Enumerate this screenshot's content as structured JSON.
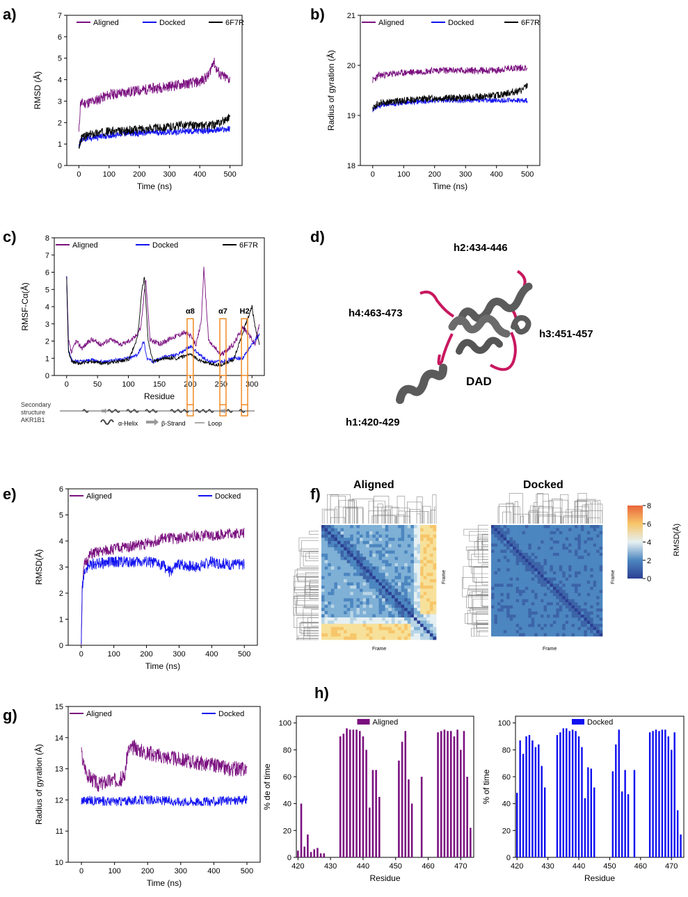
{
  "colors": {
    "aligned": "#7a0f7f",
    "docked": "#1010f0",
    "ref": "#000000",
    "highlight": "#f08a24",
    "helix": "#5b5b5b",
    "loop": "#c8175f"
  },
  "panel_labels": {
    "a": "a)",
    "b": "b)",
    "c": "c)",
    "d": "d)",
    "e": "e)",
    "f": "f)",
    "g": "g)",
    "h": "h)"
  },
  "panel_d": {
    "labels": [
      "h2:434-446",
      "h4:463-473",
      "h3:451-457",
      "DAD",
      "h1:420-429"
    ]
  },
  "panel_f": {
    "titles": [
      "Aligned",
      "Docked"
    ],
    "axis_label": "Frame",
    "colorbar_label": "RMSD(Å)",
    "colorbar_ticks": [
      "8",
      "6",
      "4",
      "2",
      "0"
    ]
  },
  "chart_data": [
    {
      "id": "a",
      "type": "line",
      "xlabel": "Time (ns)",
      "ylabel": "RMSD (Å)",
      "xlim": [
        -40,
        540
      ],
      "ylim": [
        0,
        7
      ],
      "xticks": [
        "0",
        "100",
        "200",
        "300",
        "400",
        "500"
      ],
      "yticks": [
        "0",
        "1",
        "2",
        "3",
        "4",
        "5",
        "6",
        "7"
      ],
      "legend": [
        "Aligned",
        "Docked",
        "6F7R"
      ],
      "series": [
        {
          "name": "Aligned",
          "color_key": "aligned",
          "noise": 0.25,
          "x": [
            0,
            5,
            20,
            50,
            100,
            150,
            200,
            250,
            300,
            350,
            400,
            430,
            445,
            455,
            470,
            500
          ],
          "y": [
            1.5,
            2.9,
            2.9,
            3.0,
            3.3,
            3.4,
            3.5,
            3.6,
            3.7,
            3.8,
            3.9,
            4.2,
            4.9,
            4.5,
            4.2,
            4.0
          ]
        },
        {
          "name": "Docked",
          "color_key": "docked",
          "noise": 0.15,
          "x": [
            0,
            10,
            50,
            100,
            150,
            200,
            250,
            300,
            350,
            400,
            450,
            500
          ],
          "y": [
            1.0,
            1.2,
            1.3,
            1.4,
            1.5,
            1.5,
            1.55,
            1.55,
            1.6,
            1.6,
            1.65,
            1.7
          ]
        },
        {
          "name": "6F7R",
          "color_key": "ref",
          "noise": 0.2,
          "x": [
            0,
            10,
            50,
            100,
            150,
            200,
            250,
            300,
            350,
            400,
            450,
            480,
            500
          ],
          "y": [
            0.9,
            1.3,
            1.5,
            1.6,
            1.6,
            1.7,
            1.75,
            1.8,
            1.9,
            1.85,
            1.9,
            2.1,
            2.3
          ]
        }
      ]
    },
    {
      "id": "b",
      "type": "line",
      "xlabel": "Time (ns)",
      "ylabel": "Radius of gyration (Å)",
      "xlim": [
        -40,
        540
      ],
      "ylim": [
        18,
        21
      ],
      "xticks": [
        "0",
        "100",
        "200",
        "300",
        "400",
        "500"
      ],
      "yticks": [
        "18",
        "19",
        "20",
        "21"
      ],
      "legend": [
        "Aligned",
        "Docked",
        "6F7R"
      ],
      "series": [
        {
          "name": "Aligned",
          "color_key": "aligned",
          "noise": 0.07,
          "x": [
            0,
            20,
            100,
            200,
            300,
            400,
            450,
            500
          ],
          "y": [
            19.7,
            19.8,
            19.85,
            19.9,
            19.9,
            19.9,
            19.95,
            19.95
          ]
        },
        {
          "name": "Docked",
          "color_key": "docked",
          "noise": 0.05,
          "x": [
            0,
            20,
            100,
            200,
            300,
            400,
            500
          ],
          "y": [
            19.1,
            19.2,
            19.25,
            19.3,
            19.3,
            19.3,
            19.3
          ]
        },
        {
          "name": "6F7R",
          "color_key": "ref",
          "noise": 0.07,
          "x": [
            0,
            20,
            100,
            200,
            300,
            400,
            480,
            500
          ],
          "y": [
            19.15,
            19.25,
            19.3,
            19.35,
            19.35,
            19.4,
            19.5,
            19.6
          ]
        }
      ]
    },
    {
      "id": "c",
      "type": "line",
      "xlabel": "Residue",
      "ylabel": "RMSF-Cα(Å)",
      "xlim": [
        -20,
        320
      ],
      "ylim": [
        0,
        8
      ],
      "xticks": [
        "0",
        "50",
        "100",
        "150",
        "200",
        "250",
        "300"
      ],
      "yticks": [
        "0",
        "1",
        "2",
        "3",
        "4",
        "5",
        "6",
        "7",
        "8"
      ],
      "legend": [
        "Aligned",
        "Docked",
        "6F7R"
      ],
      "highlights": [
        {
          "label": "α8",
          "x0": 195,
          "x1": 205
        },
        {
          "label": "α7",
          "x0": 248,
          "x1": 258
        },
        {
          "label": "H2",
          "x0": 283,
          "x1": 293
        }
      ],
      "secondary_structure": {
        "title": [
          "Secondary",
          "structure",
          "AKR1B1"
        ],
        "legend": [
          "α-Helix",
          "β-Strand",
          "Loop"
        ]
      },
      "series": [
        {
          "name": "Aligned",
          "color_key": "aligned",
          "noise": 0.15,
          "x": [
            0,
            3,
            8,
            15,
            25,
            40,
            55,
            70,
            90,
            110,
            120,
            128,
            135,
            150,
            170,
            190,
            200,
            210,
            218,
            222,
            230,
            250,
            270,
            285,
            295,
            305,
            312
          ],
          "y": [
            5.7,
            2.0,
            1.3,
            2.0,
            1.6,
            2.1,
            1.8,
            2.1,
            1.8,
            2.2,
            2.8,
            5.6,
            2.1,
            1.8,
            2.2,
            2.5,
            2.3,
            1.8,
            3.2,
            6.2,
            2.0,
            1.2,
            1.8,
            2.8,
            2.4,
            1.8,
            3.0
          ]
        },
        {
          "name": "Docked",
          "color_key": "docked",
          "noise": 0.1,
          "x": [
            0,
            3,
            8,
            20,
            40,
            60,
            80,
            100,
            115,
            125,
            130,
            140,
            160,
            180,
            200,
            215,
            230,
            250,
            270,
            285,
            300,
            312
          ],
          "y": [
            5.7,
            1.5,
            0.9,
            0.8,
            0.9,
            0.8,
            0.9,
            1.0,
            1.2,
            2.0,
            1.0,
            0.8,
            1.1,
            1.2,
            1.7,
            1.2,
            0.8,
            0.8,
            1.0,
            1.0,
            1.8,
            2.4
          ]
        },
        {
          "name": "6F7R",
          "color_key": "ref",
          "noise": 0.1,
          "x": [
            0,
            3,
            8,
            20,
            40,
            60,
            80,
            100,
            115,
            122,
            126,
            132,
            140,
            160,
            180,
            200,
            215,
            230,
            250,
            270,
            285,
            300,
            305,
            312
          ],
          "y": [
            5.7,
            1.4,
            0.8,
            0.7,
            0.8,
            0.7,
            0.8,
            0.9,
            2.2,
            5.0,
            5.7,
            2.0,
            0.8,
            1.0,
            1.0,
            1.2,
            0.9,
            0.7,
            0.6,
            0.9,
            2.5,
            4.0,
            2.8,
            1.8
          ]
        }
      ]
    },
    {
      "id": "e",
      "type": "line",
      "xlabel": "Time (ns)",
      "ylabel": "RMSD(Å)",
      "xlim": [
        -40,
        540
      ],
      "ylim": [
        0,
        6
      ],
      "xticks": [
        "0",
        "100",
        "200",
        "300",
        "400",
        "500"
      ],
      "yticks": [
        "0",
        "1",
        "2",
        "3",
        "4",
        "5",
        "6"
      ],
      "legend": [
        "Aligned",
        "Docked"
      ],
      "series": [
        {
          "name": "Aligned",
          "color_key": "aligned",
          "noise": 0.22,
          "x": [
            0,
            3,
            10,
            30,
            100,
            150,
            200,
            250,
            300,
            350,
            400,
            450,
            500
          ],
          "y": [
            0.0,
            2.3,
            3.1,
            3.5,
            3.7,
            3.8,
            3.9,
            4.1,
            4.1,
            4.2,
            4.2,
            4.3,
            4.3
          ]
        },
        {
          "name": "Docked",
          "color_key": "docked",
          "noise": 0.22,
          "x": [
            0,
            3,
            10,
            30,
            100,
            150,
            200,
            250,
            270,
            300,
            350,
            400,
            450,
            500
          ],
          "y": [
            0.0,
            2.2,
            2.9,
            3.1,
            3.2,
            3.2,
            3.2,
            3.1,
            2.8,
            3.1,
            3.0,
            3.2,
            3.1,
            3.1
          ]
        }
      ]
    },
    {
      "id": "g",
      "type": "line",
      "xlabel": "Time (ns)",
      "ylabel": "Radius of gyration (Å)",
      "xlim": [
        -40,
        540
      ],
      "ylim": [
        10,
        15
      ],
      "xticks": [
        "0",
        "100",
        "200",
        "300",
        "400",
        "500"
      ],
      "yticks": [
        "10",
        "11",
        "12",
        "13",
        "14",
        "15"
      ],
      "legend": [
        "Aligned",
        "Docked"
      ],
      "series": [
        {
          "name": "Aligned",
          "color_key": "aligned",
          "noise": 0.25,
          "x": [
            0,
            5,
            20,
            50,
            80,
            130,
            140,
            160,
            200,
            250,
            300,
            350,
            400,
            450,
            500
          ],
          "y": [
            13.5,
            13.2,
            12.8,
            12.5,
            12.6,
            12.7,
            13.6,
            13.7,
            13.5,
            13.4,
            13.3,
            13.2,
            13.1,
            13.0,
            13.0
          ]
        },
        {
          "name": "Docked",
          "color_key": "docked",
          "noise": 0.15,
          "x": [
            0,
            100,
            200,
            300,
            400,
            500
          ],
          "y": [
            12.0,
            11.95,
            12.0,
            11.95,
            11.95,
            12.0
          ]
        }
      ]
    },
    {
      "id": "h1",
      "type": "bar",
      "xlabel": "Residue",
      "ylabel": "% de of time",
      "legend": "Aligned",
      "color_key": "aligned",
      "xlim": [
        419.5,
        474
      ],
      "ylim": [
        0,
        105
      ],
      "xticks": [
        "420",
        "430",
        "440",
        "450",
        "460",
        "470"
      ],
      "yticks": [
        "0",
        "20",
        "40",
        "60",
        "80",
        "100"
      ],
      "categories": [
        420,
        421,
        422,
        423,
        424,
        425,
        426,
        427,
        428,
        429,
        430,
        431,
        432,
        433,
        434,
        435,
        436,
        437,
        438,
        439,
        440,
        441,
        442,
        443,
        444,
        445,
        446,
        447,
        448,
        449,
        450,
        451,
        452,
        453,
        454,
        455,
        456,
        457,
        458,
        459,
        460,
        461,
        462,
        463,
        464,
        465,
        466,
        467,
        468,
        469,
        470,
        471,
        472,
        473
      ],
      "values": [
        5,
        40,
        8,
        17,
        4,
        6,
        7,
        3,
        3,
        0,
        0,
        0,
        0,
        90,
        92,
        96,
        95,
        95,
        95,
        94,
        90,
        80,
        37,
        65,
        65,
        45,
        0,
        0,
        0,
        0,
        0,
        72,
        86,
        94,
        58,
        40,
        0,
        0,
        60,
        0,
        0,
        0,
        0,
        93,
        94,
        95,
        94,
        94,
        90,
        95,
        80,
        94,
        60,
        22
      ]
    },
    {
      "id": "h2",
      "type": "bar",
      "xlabel": "Residue",
      "ylabel": "% of time",
      "legend": "Docked",
      "color_key": "docked",
      "xlim": [
        419.5,
        474
      ],
      "ylim": [
        0,
        105
      ],
      "xticks": [
        "420",
        "430",
        "440",
        "450",
        "460",
        "470"
      ],
      "yticks": [
        "0",
        "20",
        "40",
        "60",
        "80",
        "100"
      ],
      "categories": [
        420,
        421,
        422,
        423,
        424,
        425,
        426,
        427,
        428,
        429,
        430,
        431,
        432,
        433,
        434,
        435,
        436,
        437,
        438,
        439,
        440,
        441,
        442,
        443,
        444,
        445,
        446,
        447,
        448,
        449,
        450,
        451,
        452,
        453,
        454,
        455,
        456,
        457,
        458,
        459,
        460,
        461,
        462,
        463,
        464,
        465,
        466,
        467,
        468,
        469,
        470,
        471,
        472,
        473
      ],
      "values": [
        48,
        87,
        77,
        90,
        91,
        87,
        82,
        84,
        68,
        52,
        0,
        0,
        0,
        91,
        93,
        96,
        96,
        94,
        95,
        94,
        90,
        82,
        44,
        67,
        66,
        52,
        0,
        0,
        0,
        0,
        0,
        64,
        84,
        95,
        49,
        65,
        47,
        0,
        65,
        0,
        0,
        0,
        0,
        93,
        94,
        95,
        94,
        95,
        95,
        90,
        80,
        93,
        35,
        17
      ]
    }
  ]
}
